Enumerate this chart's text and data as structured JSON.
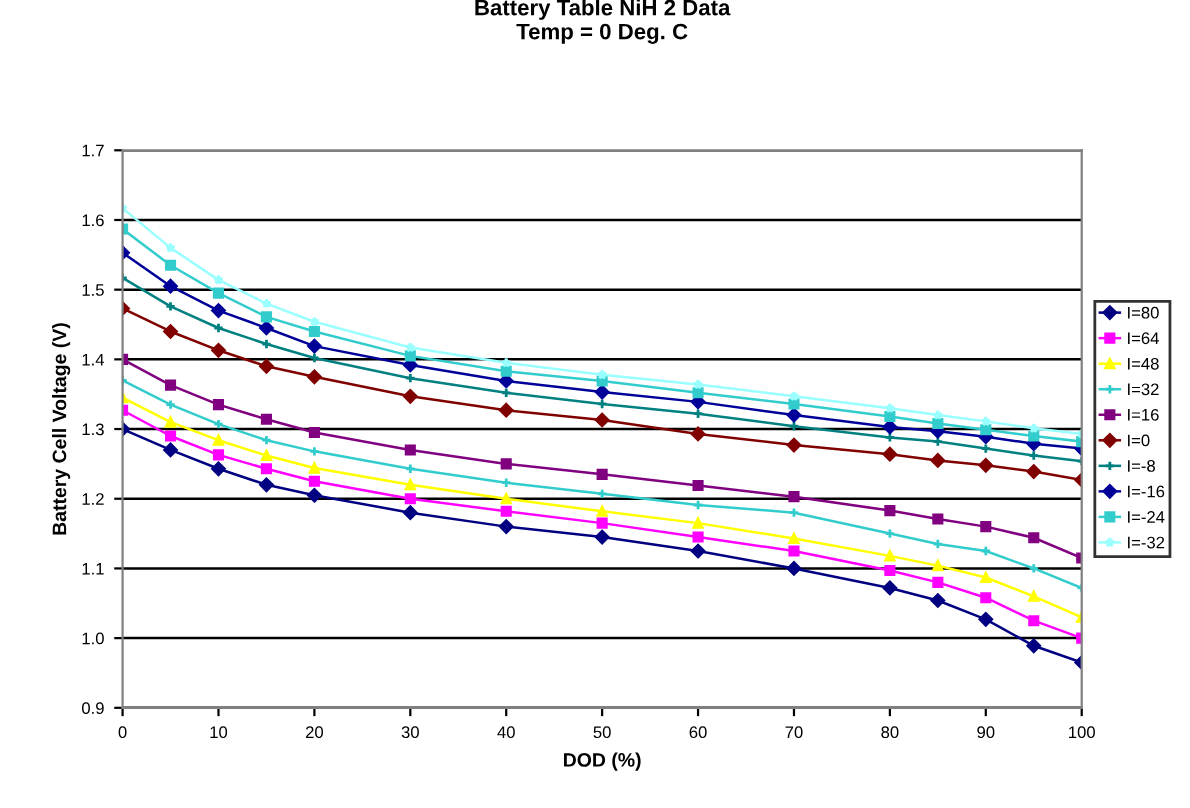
{
  "chart_data": {
    "type": "line",
    "title": "Battery Table NiH 2 Data\nTemp = 0 Deg. C",
    "xlabel": "DOD (%)",
    "ylabel": "Battery Cell Voltage (V)",
    "xlim": [
      0,
      100
    ],
    "xticks": [
      0,
      10,
      20,
      30,
      40,
      50,
      60,
      70,
      80,
      90,
      100
    ],
    "ylim": [
      0.9,
      1.7
    ],
    "yticks": [
      {
        "value": 0.9,
        "label": "0.9"
      },
      {
        "value": 1.0,
        "label": "1.0"
      },
      {
        "value": 1.1,
        "label": "1.1"
      },
      {
        "value": 1.2,
        "label": "1.2"
      },
      {
        "value": 1.3,
        "label": "1.3"
      },
      {
        "value": 1.4,
        "label": "1.4"
      },
      {
        "value": 1.5,
        "label": "1.5"
      },
      {
        "value": 1.6,
        "label": "1.6"
      },
      {
        "value": 1.7,
        "label": "1.7"
      }
    ],
    "grid": "y",
    "legend": "right",
    "line_style": "solid",
    "x": [
      0,
      5,
      10,
      15,
      20,
      30,
      40,
      50,
      60,
      70,
      80,
      85,
      90,
      95,
      100
    ],
    "series": [
      {
        "name": "I=80",
        "color": "#000080",
        "marker": "diamond",
        "values": [
          1.3,
          1.27,
          1.243,
          1.22,
          1.205,
          1.18,
          1.16,
          1.145,
          1.125,
          1.1,
          1.072,
          1.054,
          1.027,
          0.989,
          0.965
        ]
      },
      {
        "name": "I=64",
        "color": "#ff00ff",
        "marker": "square",
        "values": [
          1.327,
          1.29,
          1.263,
          1.243,
          1.225,
          1.2,
          1.182,
          1.165,
          1.145,
          1.125,
          1.097,
          1.08,
          1.058,
          1.025,
          1.0
        ]
      },
      {
        "name": "I=48",
        "color": "#ffff00",
        "marker": "triangle",
        "values": [
          1.345,
          1.31,
          1.284,
          1.262,
          1.244,
          1.22,
          1.2,
          1.182,
          1.165,
          1.143,
          1.118,
          1.104,
          1.087,
          1.06,
          1.03
        ]
      },
      {
        "name": "I=32",
        "color": "#33cccc",
        "marker": "cross",
        "values": [
          1.37,
          1.335,
          1.307,
          1.284,
          1.268,
          1.243,
          1.223,
          1.207,
          1.191,
          1.18,
          1.15,
          1.135,
          1.125,
          1.1,
          1.072
        ]
      },
      {
        "name": "I=16",
        "color": "#800080",
        "marker": "square",
        "values": [
          1.4,
          1.363,
          1.335,
          1.314,
          1.295,
          1.27,
          1.25,
          1.235,
          1.219,
          1.203,
          1.183,
          1.171,
          1.16,
          1.144,
          1.115
        ]
      },
      {
        "name": "I=0",
        "color": "#800000",
        "marker": "diamond",
        "values": [
          1.473,
          1.44,
          1.413,
          1.39,
          1.375,
          1.347,
          1.327,
          1.313,
          1.293,
          1.277,
          1.264,
          1.255,
          1.248,
          1.239,
          1.227
        ]
      },
      {
        "name": "I=-8",
        "color": "#008080",
        "marker": "cross",
        "values": [
          1.517,
          1.476,
          1.445,
          1.422,
          1.402,
          1.373,
          1.352,
          1.336,
          1.322,
          1.304,
          1.288,
          1.282,
          1.272,
          1.262,
          1.254
        ]
      },
      {
        "name": "I=-16",
        "color": "#000099",
        "marker": "diamond",
        "values": [
          1.553,
          1.505,
          1.47,
          1.445,
          1.419,
          1.392,
          1.369,
          1.353,
          1.339,
          1.32,
          1.303,
          1.297,
          1.289,
          1.279,
          1.272
        ]
      },
      {
        "name": "I=-24",
        "color": "#33cccc",
        "marker": "square",
        "values": [
          1.587,
          1.535,
          1.495,
          1.461,
          1.44,
          1.405,
          1.383,
          1.369,
          1.352,
          1.336,
          1.318,
          1.308,
          1.299,
          1.29,
          1.282
        ]
      },
      {
        "name": "I=-32",
        "color": "#99ffff",
        "marker": "star",
        "values": [
          1.617,
          1.56,
          1.514,
          1.48,
          1.454,
          1.417,
          1.395,
          1.378,
          1.364,
          1.347,
          1.33,
          1.32,
          1.311,
          1.301,
          1.293
        ]
      }
    ]
  }
}
